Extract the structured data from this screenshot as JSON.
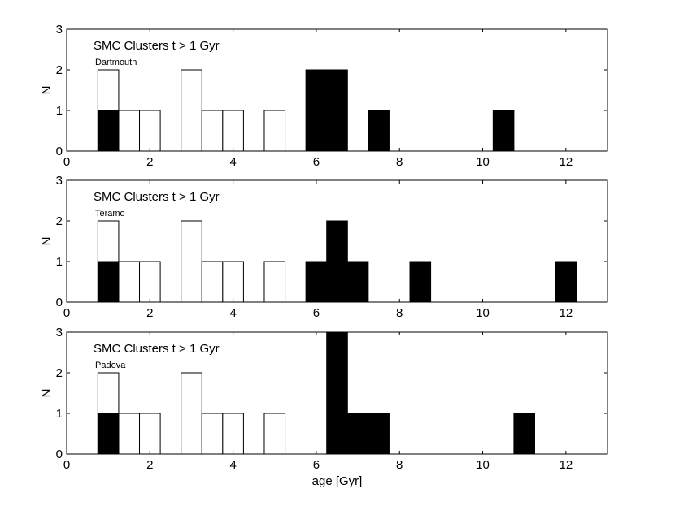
{
  "chart_data": [
    {
      "type": "bar",
      "title": "SMC Clusters t > 1 Gyr",
      "annotation": "Dartmouth",
      "ylabel": "N",
      "xlabel": "",
      "xlim": [
        0,
        13
      ],
      "ylim": [
        0,
        3
      ],
      "xticks": [
        0,
        2,
        4,
        6,
        8,
        10,
        12
      ],
      "yticks": [
        0,
        1,
        2,
        3
      ],
      "bin_width": 0.5,
      "series": [
        {
          "name": "",
          "style": "outline",
          "x": [
            1.0,
            1.5,
            2.0,
            3.0,
            3.5,
            4.0,
            5.0
          ],
          "values": [
            2,
            1,
            1,
            2,
            1,
            1,
            1
          ]
        },
        {
          "name": "",
          "style": "filled",
          "x": [
            1.0,
            6.0,
            6.5,
            7.5,
            10.5
          ],
          "values": [
            1,
            2,
            2,
            1,
            1
          ]
        }
      ]
    },
    {
      "type": "bar",
      "title": "SMC Clusters t > 1 Gyr",
      "annotation": "Teramo",
      "ylabel": "N",
      "xlabel": "",
      "xlim": [
        0,
        13
      ],
      "ylim": [
        0,
        3
      ],
      "xticks": [
        0,
        2,
        4,
        6,
        8,
        10,
        12
      ],
      "yticks": [
        0,
        1,
        2,
        3
      ],
      "bin_width": 0.5,
      "series": [
        {
          "name": "",
          "style": "outline",
          "x": [
            1.0,
            1.5,
            2.0,
            3.0,
            3.5,
            4.0,
            5.0
          ],
          "values": [
            2,
            1,
            1,
            2,
            1,
            1,
            1
          ]
        },
        {
          "name": "",
          "style": "filled",
          "x": [
            1.0,
            6.0,
            6.5,
            7.0,
            8.5,
            12.0
          ],
          "values": [
            1,
            1,
            2,
            1,
            1,
            1
          ]
        }
      ]
    },
    {
      "type": "bar",
      "title": "SMC Clusters t > 1 Gyr",
      "annotation": "Padova",
      "ylabel": "N",
      "xlabel": "age [Gyr]",
      "xlim": [
        0,
        13
      ],
      "ylim": [
        0,
        3
      ],
      "xticks": [
        0,
        2,
        4,
        6,
        8,
        10,
        12
      ],
      "yticks": [
        0,
        1,
        2,
        3
      ],
      "bin_width": 0.5,
      "series": [
        {
          "name": "",
          "style": "outline",
          "x": [
            1.0,
            1.5,
            2.0,
            3.0,
            3.5,
            4.0,
            5.0
          ],
          "values": [
            2,
            1,
            1,
            2,
            1,
            1,
            1
          ]
        },
        {
          "name": "",
          "style": "filled",
          "x": [
            1.0,
            6.5,
            7.0,
            7.5,
            11.0
          ],
          "values": [
            1,
            3,
            1,
            1,
            1
          ]
        }
      ]
    }
  ]
}
